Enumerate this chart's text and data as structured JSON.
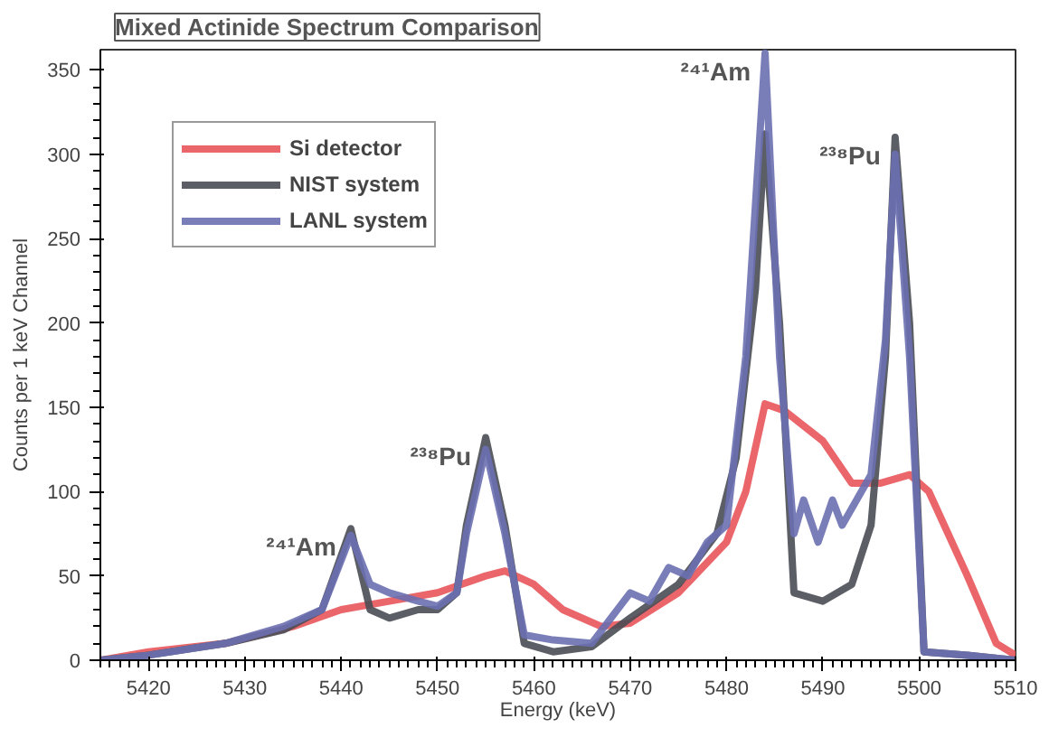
{
  "chart_data": {
    "type": "line",
    "title": "Mixed Actinide Spectrum Comparison",
    "xlabel": "Energy (keV)",
    "ylabel": "Counts per 1 keV Channel",
    "xlim": [
      5415,
      5510
    ],
    "ylim": [
      0,
      362
    ],
    "xticks": [
      5420,
      5430,
      5440,
      5450,
      5460,
      5470,
      5480,
      5490,
      5500,
      5510
    ],
    "yticks": [
      0,
      50,
      100,
      150,
      200,
      250,
      300,
      350
    ],
    "grid": false,
    "legend": "top left",
    "marker": "none",
    "line_style": "solid",
    "series": [
      {
        "name": "Si detector",
        "color": "#e8555a",
        "x": [
          5415,
          5420,
          5428,
          5435,
          5440,
          5445,
          5450,
          5455,
          5457,
          5460,
          5463,
          5467,
          5470,
          5475,
          5480,
          5482,
          5484,
          5486,
          5490,
          5493,
          5496,
          5499,
          5501,
          5505,
          5508,
          5510
        ],
        "values": [
          0,
          5,
          10,
          20,
          30,
          35,
          40,
          50,
          53,
          45,
          30,
          20,
          22,
          40,
          70,
          100,
          152,
          148,
          130,
          105,
          105,
          110,
          100,
          50,
          10,
          3
        ]
      },
      {
        "name": "NIST system",
        "color": "#4a4c55",
        "x": [
          5415,
          5420,
          5428,
          5434,
          5438,
          5441,
          5443,
          5445,
          5448,
          5450,
          5452,
          5453,
          5455,
          5457,
          5459,
          5462,
          5466,
          5470,
          5475,
          5479,
          5481,
          5483,
          5484,
          5485.5,
          5487,
          5490,
          5493,
          5495,
          5496.5,
          5497.5,
          5499,
          5500.5,
          5505,
          5510
        ],
        "values": [
          0,
          3,
          10,
          18,
          30,
          78,
          30,
          25,
          30,
          30,
          40,
          80,
          132,
          80,
          10,
          5,
          8,
          25,
          45,
          75,
          120,
          220,
          312,
          200,
          40,
          35,
          45,
          80,
          180,
          310,
          200,
          5,
          3,
          0
        ]
      },
      {
        "name": "LANL system",
        "color": "#6a6fb0",
        "x": [
          5415,
          5420,
          5428,
          5434,
          5438,
          5441,
          5443,
          5445,
          5448,
          5450,
          5452,
          5453,
          5455,
          5457,
          5459,
          5462,
          5466,
          5468,
          5470,
          5472,
          5474,
          5476,
          5478,
          5480,
          5482,
          5484,
          5485.5,
          5487,
          5488,
          5489.5,
          5491,
          5492,
          5494,
          5495,
          5496.5,
          5497.5,
          5499,
          5500.5,
          5505,
          5510
        ],
        "values": [
          0,
          3,
          10,
          20,
          30,
          74,
          45,
          40,
          35,
          32,
          40,
          75,
          125,
          75,
          15,
          12,
          10,
          25,
          40,
          35,
          55,
          50,
          70,
          80,
          180,
          360,
          180,
          75,
          95,
          70,
          95,
          80,
          100,
          110,
          190,
          300,
          180,
          5,
          3,
          0
        ]
      }
    ],
    "annotations": [
      {
        "text": "²⁴¹Am",
        "x": 5441,
        "y": 78
      },
      {
        "text": "²³⁸Pu",
        "x": 5455,
        "y": 132
      },
      {
        "text": "²⁴¹Am",
        "x": 5484,
        "y": 360
      },
      {
        "text": "²³⁸Pu",
        "x": 5497.5,
        "y": 310
      }
    ]
  }
}
